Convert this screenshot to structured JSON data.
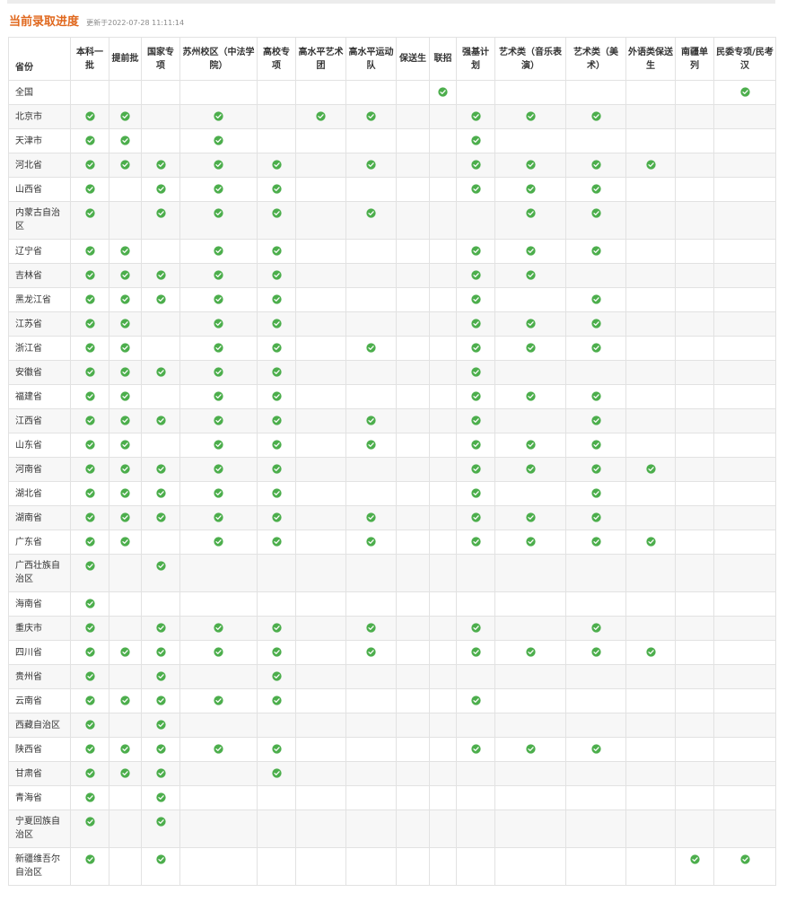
{
  "header": {
    "title": "当前录取进度",
    "updated": "更新于2022-07-28 11:11:14"
  },
  "colors": {
    "accent": "#e0681e",
    "check": "#4cae4c",
    "border": "#e2e2e2",
    "stripe": "#f7f7f7"
  },
  "icon": "check-circle-icon",
  "columns": [
    "省份",
    "本科一批",
    "提前批",
    "国家专项",
    "苏州校区（中法学院）",
    "高校专项",
    "高水平艺术团",
    "高水平运动队",
    "保送生",
    "联招",
    "强基计划",
    "艺术类（音乐表演）",
    "艺术类（美术）",
    "外语类保送生",
    "南疆单列",
    "民委专项/民考汉"
  ],
  "rows": [
    {
      "province": "全国",
      "marks": [
        0,
        0,
        0,
        0,
        0,
        0,
        0,
        0,
        1,
        0,
        0,
        0,
        0,
        0,
        1
      ]
    },
    {
      "province": "北京市",
      "marks": [
        1,
        1,
        0,
        1,
        0,
        1,
        1,
        0,
        0,
        1,
        1,
        1,
        0,
        0,
        0
      ]
    },
    {
      "province": "天津市",
      "marks": [
        1,
        1,
        0,
        1,
        0,
        0,
        0,
        0,
        0,
        1,
        0,
        0,
        0,
        0,
        0
      ]
    },
    {
      "province": "河北省",
      "marks": [
        1,
        1,
        1,
        1,
        1,
        0,
        1,
        0,
        0,
        1,
        1,
        1,
        1,
        0,
        0
      ]
    },
    {
      "province": "山西省",
      "marks": [
        1,
        0,
        1,
        1,
        1,
        0,
        0,
        0,
        0,
        1,
        1,
        1,
        0,
        0,
        0
      ]
    },
    {
      "province": "内蒙古自治区",
      "marks": [
        1,
        0,
        1,
        1,
        1,
        0,
        1,
        0,
        0,
        0,
        1,
        1,
        0,
        0,
        0
      ]
    },
    {
      "province": "辽宁省",
      "marks": [
        1,
        1,
        0,
        1,
        1,
        0,
        0,
        0,
        0,
        1,
        1,
        1,
        0,
        0,
        0
      ]
    },
    {
      "province": "吉林省",
      "marks": [
        1,
        1,
        1,
        1,
        1,
        0,
        0,
        0,
        0,
        1,
        1,
        0,
        0,
        0,
        0
      ]
    },
    {
      "province": "黑龙江省",
      "marks": [
        1,
        1,
        1,
        1,
        1,
        0,
        0,
        0,
        0,
        1,
        0,
        1,
        0,
        0,
        0
      ]
    },
    {
      "province": "江苏省",
      "marks": [
        1,
        1,
        0,
        1,
        1,
        0,
        0,
        0,
        0,
        1,
        1,
        1,
        0,
        0,
        0
      ]
    },
    {
      "province": "浙江省",
      "marks": [
        1,
        1,
        0,
        1,
        1,
        0,
        1,
        0,
        0,
        1,
        1,
        1,
        0,
        0,
        0
      ]
    },
    {
      "province": "安徽省",
      "marks": [
        1,
        1,
        1,
        1,
        1,
        0,
        0,
        0,
        0,
        1,
        0,
        0,
        0,
        0,
        0
      ]
    },
    {
      "province": "福建省",
      "marks": [
        1,
        1,
        0,
        1,
        1,
        0,
        0,
        0,
        0,
        1,
        1,
        1,
        0,
        0,
        0
      ]
    },
    {
      "province": "江西省",
      "marks": [
        1,
        1,
        1,
        1,
        1,
        0,
        1,
        0,
        0,
        1,
        0,
        1,
        0,
        0,
        0
      ]
    },
    {
      "province": "山东省",
      "marks": [
        1,
        1,
        0,
        1,
        1,
        0,
        1,
        0,
        0,
        1,
        1,
        1,
        0,
        0,
        0
      ]
    },
    {
      "province": "河南省",
      "marks": [
        1,
        1,
        1,
        1,
        1,
        0,
        0,
        0,
        0,
        1,
        1,
        1,
        1,
        0,
        0
      ]
    },
    {
      "province": "湖北省",
      "marks": [
        1,
        1,
        1,
        1,
        1,
        0,
        0,
        0,
        0,
        1,
        0,
        1,
        0,
        0,
        0
      ]
    },
    {
      "province": "湖南省",
      "marks": [
        1,
        1,
        1,
        1,
        1,
        0,
        1,
        0,
        0,
        1,
        1,
        1,
        0,
        0,
        0
      ]
    },
    {
      "province": "广东省",
      "marks": [
        1,
        1,
        0,
        1,
        1,
        0,
        1,
        0,
        0,
        1,
        1,
        1,
        1,
        0,
        0
      ]
    },
    {
      "province": "广西壮族自治区",
      "marks": [
        1,
        0,
        1,
        0,
        0,
        0,
        0,
        0,
        0,
        0,
        0,
        0,
        0,
        0,
        0
      ]
    },
    {
      "province": "海南省",
      "marks": [
        1,
        0,
        0,
        0,
        0,
        0,
        0,
        0,
        0,
        0,
        0,
        0,
        0,
        0,
        0
      ]
    },
    {
      "province": "重庆市",
      "marks": [
        1,
        0,
        1,
        1,
        1,
        0,
        1,
        0,
        0,
        1,
        0,
        1,
        0,
        0,
        0
      ]
    },
    {
      "province": "四川省",
      "marks": [
        1,
        1,
        1,
        1,
        1,
        0,
        1,
        0,
        0,
        1,
        1,
        1,
        1,
        0,
        0
      ]
    },
    {
      "province": "贵州省",
      "marks": [
        1,
        0,
        1,
        0,
        1,
        0,
        0,
        0,
        0,
        0,
        0,
        0,
        0,
        0,
        0
      ]
    },
    {
      "province": "云南省",
      "marks": [
        1,
        1,
        1,
        1,
        1,
        0,
        0,
        0,
        0,
        1,
        0,
        0,
        0,
        0,
        0
      ]
    },
    {
      "province": "西藏自治区",
      "marks": [
        1,
        0,
        1,
        0,
        0,
        0,
        0,
        0,
        0,
        0,
        0,
        0,
        0,
        0,
        0
      ]
    },
    {
      "province": "陕西省",
      "marks": [
        1,
        1,
        1,
        1,
        1,
        0,
        0,
        0,
        0,
        1,
        1,
        1,
        0,
        0,
        0
      ]
    },
    {
      "province": "甘肃省",
      "marks": [
        1,
        1,
        1,
        0,
        1,
        0,
        0,
        0,
        0,
        0,
        0,
        0,
        0,
        0,
        0
      ]
    },
    {
      "province": "青海省",
      "marks": [
        1,
        0,
        1,
        0,
        0,
        0,
        0,
        0,
        0,
        0,
        0,
        0,
        0,
        0,
        0
      ]
    },
    {
      "province": "宁夏回族自治区",
      "marks": [
        1,
        0,
        1,
        0,
        0,
        0,
        0,
        0,
        0,
        0,
        0,
        0,
        0,
        0,
        0
      ]
    },
    {
      "province": "新疆维吾尔自治区",
      "marks": [
        1,
        0,
        1,
        0,
        0,
        0,
        0,
        0,
        0,
        0,
        0,
        0,
        0,
        1,
        1
      ]
    }
  ]
}
